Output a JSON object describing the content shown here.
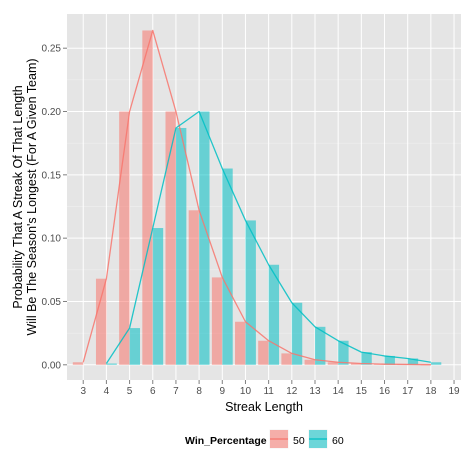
{
  "chart_data": {
    "type": "bar",
    "xlabel": "Streak Length",
    "ylabel_lines": [
      "Probability That A Streak Of That Length",
      "Will Be The Season's Longest (For A Given Team)"
    ],
    "x_ticks": [
      3,
      4,
      5,
      6,
      7,
      8,
      9,
      10,
      11,
      12,
      13,
      14,
      15,
      16,
      17,
      18,
      19
    ],
    "x_range": [
      2.3,
      19.3
    ],
    "y_ticks": [
      0.0,
      0.05,
      0.1,
      0.15,
      0.2,
      0.25
    ],
    "y_tick_labels": [
      "0.00",
      "0.05",
      "0.10",
      "0.15",
      "0.20",
      "0.25"
    ],
    "ylim": [
      -0.012,
      0.277
    ],
    "grid": true,
    "legend": {
      "title": "Win_Percentage",
      "position": "bottom"
    },
    "series": [
      {
        "name": "50",
        "color": "#F8766D",
        "x": [
          3,
          4,
          5,
          6,
          7,
          8,
          9,
          10,
          11,
          12,
          13,
          14,
          15,
          16,
          17,
          18
        ],
        "values": [
          0.002,
          0.068,
          0.2,
          0.264,
          0.2,
          0.122,
          0.069,
          0.034,
          0.019,
          0.009,
          0.004,
          0.002,
          0.001,
          0.0005,
          0.0003,
          0.0001
        ]
      },
      {
        "name": "60",
        "color": "#00BFC4",
        "x": [
          4,
          5,
          6,
          7,
          8,
          9,
          10,
          11,
          12,
          13,
          14,
          15,
          16,
          17,
          18
        ],
        "values": [
          0.001,
          0.029,
          0.108,
          0.187,
          0.2,
          0.155,
          0.114,
          0.079,
          0.049,
          0.03,
          0.019,
          0.01,
          0.007,
          0.005,
          0.002
        ]
      }
    ]
  }
}
